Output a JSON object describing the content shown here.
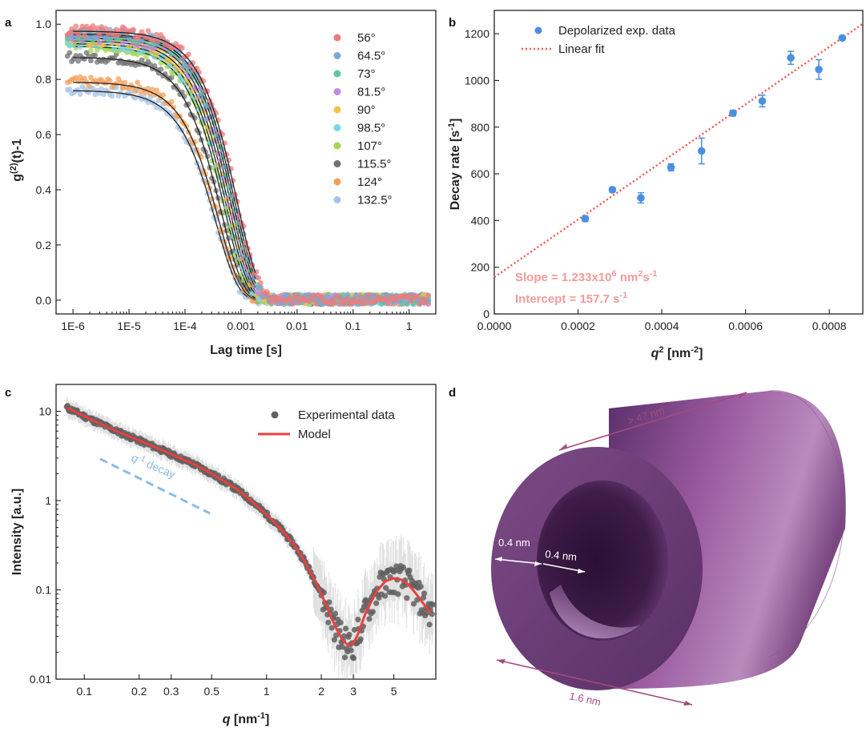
{
  "panels": {
    "a": "a",
    "b": "b",
    "c": "c",
    "d": "d"
  },
  "chart_data": [
    {
      "panel": "a",
      "type": "scatter",
      "xlabel": "Lag time [s]",
      "ylabel_parts": [
        "g",
        "(2)",
        "(t)-1"
      ],
      "xscale": "log",
      "xlim": [
        5e-07,
        3
      ],
      "ylim": [
        -0.05,
        1.05
      ],
      "xticks": [
        1e-06,
        1e-05,
        0.0001,
        0.001,
        0.01,
        0.1,
        1
      ],
      "xticklabels": [
        "1E-6",
        "1E-5",
        "1E-4",
        "0.001",
        "0.01",
        "0.1",
        "1"
      ],
      "yticks": [
        0.0,
        0.2,
        0.4,
        0.6,
        0.8,
        1.0
      ],
      "yticklabels": [
        "0.0",
        "0.2",
        "0.4",
        "0.6",
        "0.8",
        "1.0"
      ],
      "legend_position": "top-right",
      "grid": false,
      "series": [
        {
          "name": "56°",
          "color": "#ef7b7b",
          "amplitude": 0.975,
          "tau": 0.00085
        },
        {
          "name": "64.5°",
          "color": "#7ea6d2",
          "amplitude": 0.965,
          "tau": 0.00078
        },
        {
          "name": "73°",
          "color": "#5fc79a",
          "amplitude": 0.96,
          "tau": 0.00072
        },
        {
          "name": "81.5°",
          "color": "#c38ae0",
          "amplitude": 0.95,
          "tau": 0.00066
        },
        {
          "name": "90°",
          "color": "#f2c447",
          "amplitude": 0.94,
          "tau": 0.0006
        },
        {
          "name": "98.5°",
          "color": "#73d9e8",
          "amplitude": 0.93,
          "tau": 0.00055
        },
        {
          "name": "107°",
          "color": "#a3d653",
          "amplitude": 0.92,
          "tau": 0.0005
        },
        {
          "name": "115.5°",
          "color": "#707070",
          "amplitude": 0.88,
          "tau": 0.00044
        },
        {
          "name": "124°",
          "color": "#f3a05a",
          "amplitude": 0.79,
          "tau": 0.0004
        },
        {
          "name": "132.5°",
          "color": "#a6c4e4",
          "amplitude": 0.76,
          "tau": 0.00036
        }
      ]
    },
    {
      "panel": "b",
      "type": "scatter",
      "xlabel_parts": [
        "q",
        "2",
        " [nm",
        "-2",
        "]"
      ],
      "ylabel_parts": [
        "Decay rate [s",
        "-1",
        "]"
      ],
      "xlim": [
        0.0,
        0.00088
      ],
      "ylim": [
        0,
        1300
      ],
      "xticks": [
        0.0,
        0.0002,
        0.0004,
        0.0006,
        0.0008
      ],
      "xticklabels": [
        "0.0000",
        "0.0002",
        "0.0004",
        "0.0006",
        "0.0008"
      ],
      "yticks": [
        0,
        200,
        400,
        600,
        800,
        1000,
        1200
      ],
      "yticklabels": [
        "0",
        "200",
        "400",
        "600",
        "800",
        "1000",
        "1200"
      ],
      "legend_position": "top-left",
      "series": [
        {
          "name": "Depolarized exp. data",
          "color": "#4a90e2",
          "x": [
            0.000217,
            0.000282,
            0.00035,
            0.000422,
            0.000495,
            0.00057,
            0.00064,
            0.000708,
            0.000775,
            0.000831
          ],
          "y": [
            408,
            532,
            497,
            628,
            698,
            860,
            912,
            1097,
            1047,
            1182
          ],
          "err": [
            12,
            10,
            22,
            15,
            55,
            12,
            25,
            28,
            42,
            8
          ]
        },
        {
          "name": "Linear fit",
          "color": "#f05454",
          "slope": 1233000,
          "intercept": 157.7
        }
      ],
      "annotations": {
        "slope_text": "Slope = 1.233x10",
        "slope_exp": "6",
        "slope_unit": " nm",
        "slope_unit_exp": "2",
        "slope_unit_tail": "s",
        "slope_unit_tail_exp": "-1",
        "intercept_text": "Intercept = 157.7 s",
        "intercept_exp": "-1"
      }
    },
    {
      "panel": "c",
      "type": "scatter",
      "xlabel_parts": [
        "q",
        " [nm",
        "-1",
        "]"
      ],
      "ylabel": "Intensity [a.u.]",
      "xscale": "log",
      "yscale": "log",
      "xlim": [
        0.07,
        8.5
      ],
      "ylim": [
        0.01,
        20
      ],
      "xticks": [
        0.1,
        0.2,
        0.3,
        0.5,
        1,
        2,
        3,
        5
      ],
      "xticklabels": [
        "0.1",
        "0.2",
        "0.3",
        "0.5",
        "1",
        "2",
        "3",
        "5"
      ],
      "yticks": [
        0.01,
        0.1,
        1,
        10
      ],
      "yticklabels": [
        "0.01",
        "0.1",
        "1",
        "10"
      ],
      "legend_position": "top-right",
      "series": [
        {
          "name": "Experimental data",
          "color": "#606060"
        },
        {
          "name": "Model",
          "color": "#e8413f",
          "x": [
            0.08,
            0.1,
            0.12,
            0.15,
            0.2,
            0.25,
            0.3,
            0.4,
            0.5,
            0.6,
            0.7,
            0.8,
            1.0,
            1.2,
            1.4,
            1.6,
            1.8,
            2.0,
            2.2,
            2.4,
            2.6,
            2.8,
            3.0,
            3.2,
            3.5,
            4.0,
            4.5,
            5.0,
            5.5,
            6.0,
            6.5,
            7.0,
            7.5,
            8.0
          ],
          "y": [
            11.0,
            8.8,
            7.4,
            6.0,
            4.7,
            3.9,
            3.3,
            2.55,
            2.0,
            1.6,
            1.3,
            1.05,
            0.7,
            0.48,
            0.33,
            0.22,
            0.14,
            0.09,
            0.057,
            0.038,
            0.028,
            0.024,
            0.025,
            0.033,
            0.055,
            0.095,
            0.125,
            0.135,
            0.13,
            0.115,
            0.095,
            0.078,
            0.064,
            0.055
          ]
        }
      ],
      "annotation": {
        "text": "q",
        "exp": "-1",
        "tail": " decay",
        "color": "#8bbbe8",
        "slope": -1
      }
    }
  ],
  "panel_d": {
    "length_label": "> 47 nm",
    "outer_diameter_label": "1.6 nm",
    "wall_label_1": "0.4 nm",
    "wall_label_2": "0.4 nm",
    "tube_color": "#8a4f8f"
  }
}
